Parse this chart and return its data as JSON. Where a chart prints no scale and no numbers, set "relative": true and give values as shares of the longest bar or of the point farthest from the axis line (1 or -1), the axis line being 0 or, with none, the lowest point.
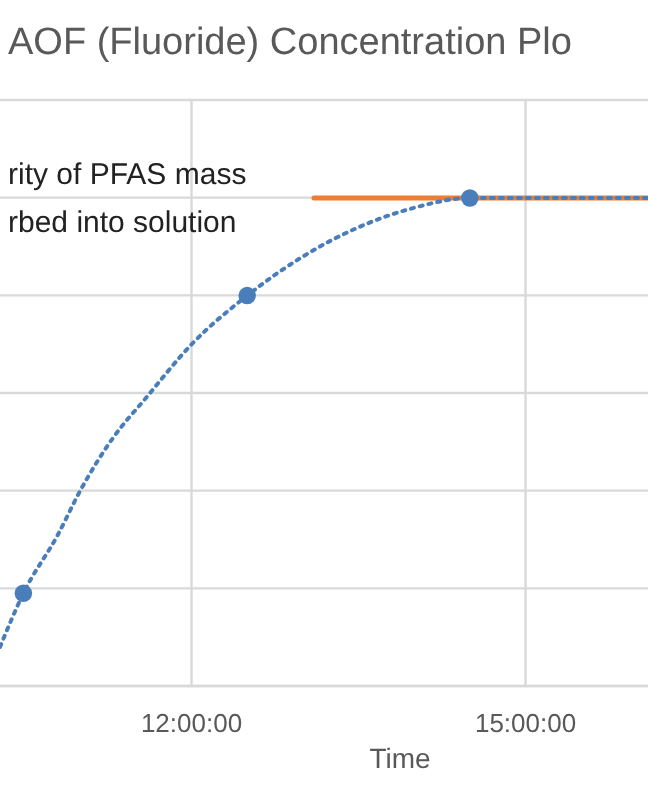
{
  "chart_data": {
    "type": "scatter",
    "title": "AOF (Fluoride) Concentration Plo",
    "xlabel": "Time",
    "relative": true,
    "annotations": [
      "rity of PFAS mass\nrbed into solution"
    ],
    "xlim": [
      10.28,
      16.1
    ],
    "xticks": [
      {
        "value": 12,
        "label": "12:00:00"
      },
      {
        "value": 15,
        "label": "15:00:00"
      }
    ],
    "tick_labels": "x",
    "grid": true,
    "series": [
      {
        "type": "line",
        "color": "#ed7d31",
        "line_style": "solid",
        "marker": "none",
        "x": [
          13.1,
          16.1
        ],
        "values": [
          1.0,
          1.0
        ]
      },
      {
        "type": "line",
        "color": "#4a7ebb",
        "line_style": "dotted",
        "marker": "none",
        "x": [
          10.28,
          10.49,
          10.8,
          11.0,
          11.3,
          11.59,
          12.0,
          12.5,
          13.0,
          13.5,
          14.0,
          14.5,
          15.0,
          15.5,
          16.1
        ],
        "values": [
          0.08,
          0.19,
          0.31,
          0.4,
          0.51,
          0.59,
          0.7,
          0.8,
          0.88,
          0.94,
          0.98,
          1.0,
          1.0,
          1.0,
          1.0
        ]
      },
      {
        "color": "#4a7ebb",
        "marker": "circle",
        "x": [
          10.49,
          12.5,
          14.5
        ],
        "values": [
          0.19,
          0.8,
          1.0
        ]
      }
    ]
  }
}
